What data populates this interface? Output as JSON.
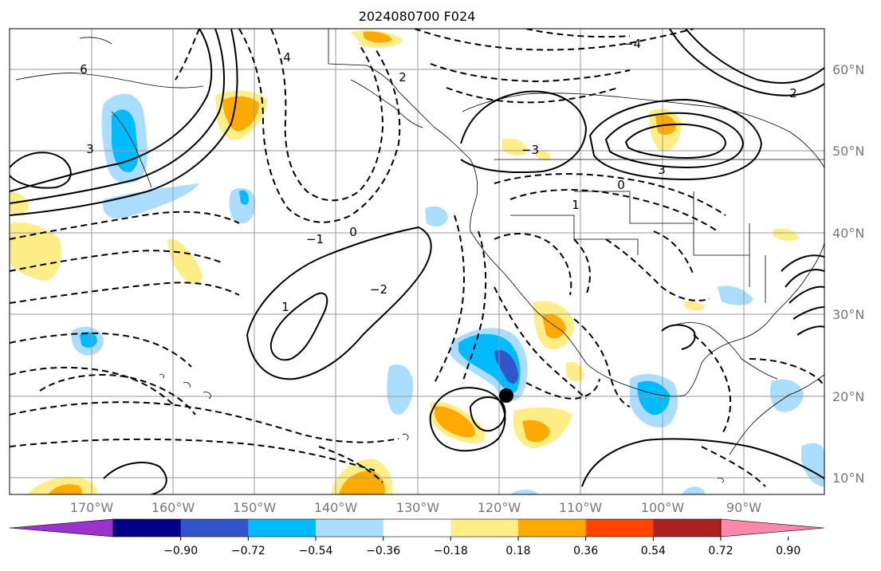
{
  "title": "2024080700 F024",
  "lat_ticks": [
    "60°N",
    "50°N",
    "40°N",
    "30°N",
    "20°N",
    "10°N"
  ],
  "lon_ticks": [
    "170°W",
    "160°W",
    "150°W",
    "140°W",
    "130°W",
    "120°W",
    "110°W",
    "100°W",
    "90°W"
  ],
  "colorbar": {
    "colors": [
      "#9933cc",
      "#000088",
      "#3355cc",
      "#00bbff",
      "#aaddff",
      "#ffffff",
      "#ffee88",
      "#ffaa00",
      "#ff4400",
      "#aa2222",
      "#ff88aa"
    ],
    "labels": [
      "−0.90",
      "−0.72",
      "−0.54",
      "−0.36",
      "−0.18",
      "0.18",
      "0.36",
      "0.54",
      "0.72",
      "0.90"
    ]
  },
  "contour_labels": [
    "6",
    "4",
    "2",
    "3",
    "1",
    "0",
    "−1",
    "−2",
    "−3",
    "−4",
    "0",
    "1",
    "2",
    "3"
  ],
  "colors": {
    "contour": "#000000",
    "grid": "#999999",
    "coast": "#000000"
  }
}
